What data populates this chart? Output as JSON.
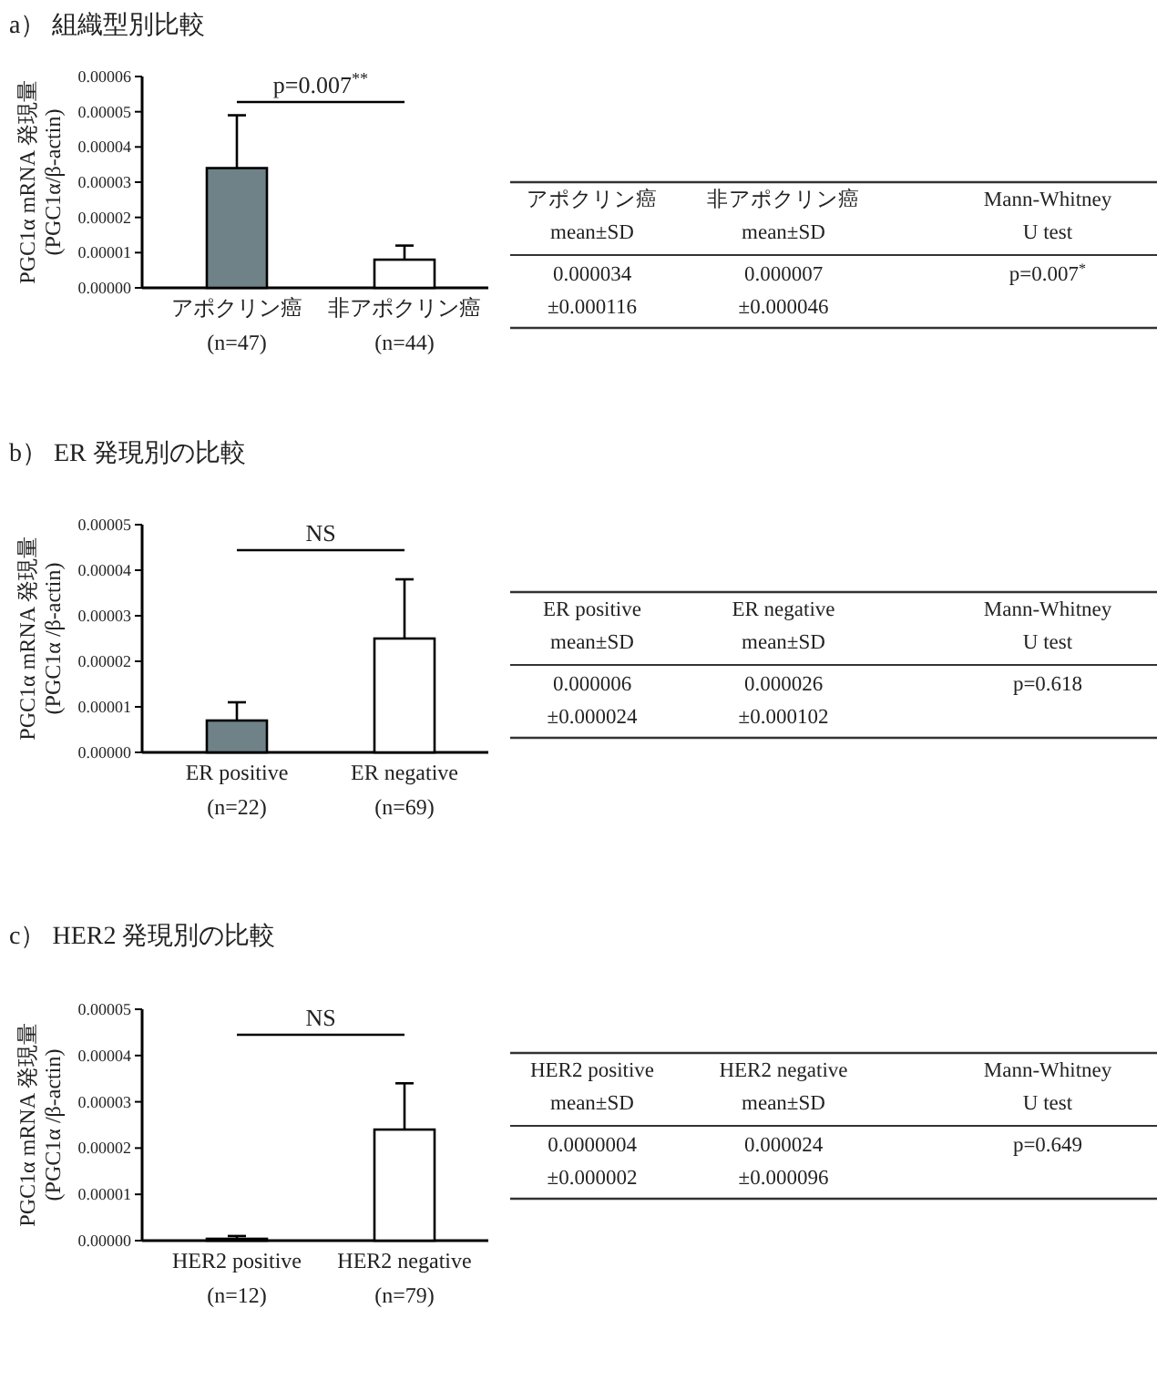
{
  "chart_data": [
    {
      "type": "bar",
      "title": "a） 組織型別比較",
      "ylabel": "PGC1α mRNA 発現量\n(PGC1α/β-actin)",
      "categories": [
        "アポクリン癌\n(n=47)",
        "非アポクリン癌\n(n=44)"
      ],
      "values": [
        3.4e-05,
        8e-06
      ],
      "colors": [
        "#6e8288",
        "#ffffff"
      ],
      "errors": [
        [
          3.4e-05,
          4.9e-05
        ],
        [
          8e-06,
          1.2e-05
        ]
      ],
      "ylim": [
        0,
        6e-05
      ],
      "yticks": [
        {
          "value": 0,
          "label": "0.00000"
        },
        {
          "value": 1e-05,
          "label": "0.00001"
        },
        {
          "value": 2e-05,
          "label": "0.00002"
        },
        {
          "value": 3e-05,
          "label": "0.00003"
        },
        {
          "value": 4e-05,
          "label": "0.00004"
        },
        {
          "value": 5e-05,
          "label": "0.00005"
        },
        {
          "value": 6e-05,
          "label": "0.00006"
        }
      ],
      "annotations": [
        "p=0.007$^{**}$"
      ]
    },
    {
      "type": "other",
      "categories": [
        "アポクリン癌\nmean±SD",
        "非アポクリン癌\nmean±SD",
        "Mann-Whitney\nU test"
      ],
      "annotations": [
        "0.000034\n±0.000116",
        "0.000007\n±0.000046",
        "p=0.007$^{*}$"
      ]
    },
    {
      "type": "bar",
      "title": "b） ER 発現別の比較",
      "ylabel": "PGC1α mRNA 発現量\n(PGC1α /β-actin)",
      "categories": [
        "ER positive\n(n=22)",
        "ER negative\n(n=69)"
      ],
      "values": [
        7e-06,
        2.5e-05
      ],
      "colors": [
        "#6e8288",
        "#ffffff"
      ],
      "errors": [
        [
          7e-06,
          1.1e-05
        ],
        [
          2.5e-05,
          3.8e-05
        ]
      ],
      "ylim": [
        0,
        5e-05
      ],
      "yticks": [
        {
          "value": 0,
          "label": "0.00000"
        },
        {
          "value": 1e-05,
          "label": "0.00001"
        },
        {
          "value": 2e-05,
          "label": "0.00002"
        },
        {
          "value": 3e-05,
          "label": "0.00003"
        },
        {
          "value": 4e-05,
          "label": "0.00004"
        },
        {
          "value": 5e-05,
          "label": "0.00005"
        }
      ],
      "annotations": [
        "NS"
      ]
    },
    {
      "type": "other",
      "categories": [
        "ER positive\nmean±SD",
        "ER negative\nmean±SD",
        "Mann-Whitney\nU test"
      ],
      "annotations": [
        "0.000006\n±0.000024",
        "0.000026\n±0.000102",
        "p=0.618"
      ]
    },
    {
      "type": "bar",
      "title": "c） HER2 発現別の比較",
      "ylabel": "PGC1α mRNA 発現量\n(PGC1α /β-actin)",
      "categories": [
        "HER2 positive\n(n=12)",
        "HER2 negative\n(n=79)"
      ],
      "values": [
        4e-07,
        2.4e-05
      ],
      "colors": [
        "#3a4a4e",
        "#ffffff"
      ],
      "errors": [
        [
          4e-07,
          1e-06
        ],
        [
          2.4e-05,
          3.4e-05
        ]
      ],
      "ylim": [
        0,
        5e-05
      ],
      "yticks": [
        {
          "value": 0,
          "label": "0.00000"
        },
        {
          "value": 1e-05,
          "label": "0.00001"
        },
        {
          "value": 2e-05,
          "label": "0.00002"
        },
        {
          "value": 3e-05,
          "label": "0.00003"
        },
        {
          "value": 4e-05,
          "label": "0.00004"
        },
        {
          "value": 5e-05,
          "label": "0.00005"
        }
      ],
      "annotations": [
        "NS"
      ]
    },
    {
      "type": "other",
      "categories": [
        "HER2 positive\nmean±SD",
        "HER2 negative\nmean±SD",
        "Mann-Whitney\nU test"
      ],
      "annotations": [
        "0.0000004\n±0.000002",
        "0.000024\n±0.000096",
        "p=0.649"
      ]
    }
  ]
}
